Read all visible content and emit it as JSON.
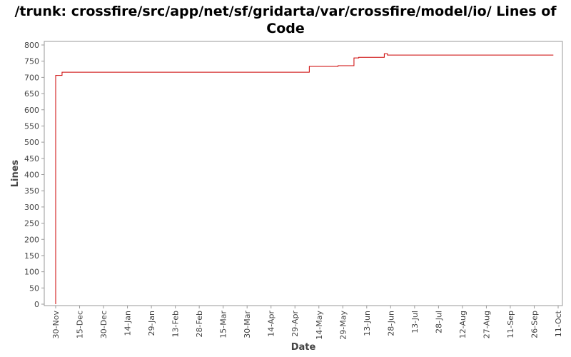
{
  "chart_data": {
    "type": "line",
    "title": "/trunk: crossfire/src/app/net/sf/gridarta/var/crossfire/model/io/ Lines of Code",
    "xlabel": "Date",
    "ylabel": "Lines",
    "ylim": [
      0,
      810
    ],
    "yticks": [
      0,
      50,
      100,
      150,
      200,
      250,
      300,
      350,
      400,
      450,
      500,
      550,
      600,
      650,
      700,
      750,
      800
    ],
    "xlim_day": [
      0,
      316
    ],
    "xticks": [
      {
        "label": "30-Nov",
        "day": 0
      },
      {
        "label": "15-Dec",
        "day": 15
      },
      {
        "label": "30-Dec",
        "day": 30
      },
      {
        "label": "14-Jan",
        "day": 45
      },
      {
        "label": "29-Jan",
        "day": 60
      },
      {
        "label": "13-Feb",
        "day": 75
      },
      {
        "label": "28-Feb",
        "day": 90
      },
      {
        "label": "15-Mar",
        "day": 105
      },
      {
        "label": "30-Mar",
        "day": 120
      },
      {
        "label": "14-Apr",
        "day": 135
      },
      {
        "label": "29-Apr",
        "day": 150
      },
      {
        "label": "14-May",
        "day": 165
      },
      {
        "label": "29-May",
        "day": 180
      },
      {
        "label": "13-Jun",
        "day": 195
      },
      {
        "label": "28-Jun",
        "day": 210
      },
      {
        "label": "13-Jul",
        "day": 225
      },
      {
        "label": "28-Jul",
        "day": 240
      },
      {
        "label": "12-Aug",
        "day": 255
      },
      {
        "label": "27-Aug",
        "day": 270
      },
      {
        "label": "11-Sep",
        "day": 285
      },
      {
        "label": "26-Sep",
        "day": 300
      },
      {
        "label": "11-Oct",
        "day": 315
      }
    ],
    "series": [
      {
        "color": "#cc0000",
        "step": true,
        "points": [
          {
            "date": "30-Nov",
            "day": 0,
            "value": 0
          },
          {
            "date": "30-Nov",
            "day": 0,
            "value": 706
          },
          {
            "date": "4-Dec",
            "day": 4,
            "value": 716
          },
          {
            "date": "8-May",
            "day": 159,
            "value": 734
          },
          {
            "date": "26-May",
            "day": 177,
            "value": 736
          },
          {
            "date": "5-Jun",
            "day": 187,
            "value": 760
          },
          {
            "date": "8-Jun",
            "day": 190,
            "value": 762
          },
          {
            "date": "24-Jun",
            "day": 206,
            "value": 773
          },
          {
            "date": "26-Jun",
            "day": 208,
            "value": 769
          },
          {
            "date": "8-Oct",
            "day": 312,
            "value": 769
          }
        ]
      }
    ],
    "grid": false,
    "legend": "none"
  }
}
